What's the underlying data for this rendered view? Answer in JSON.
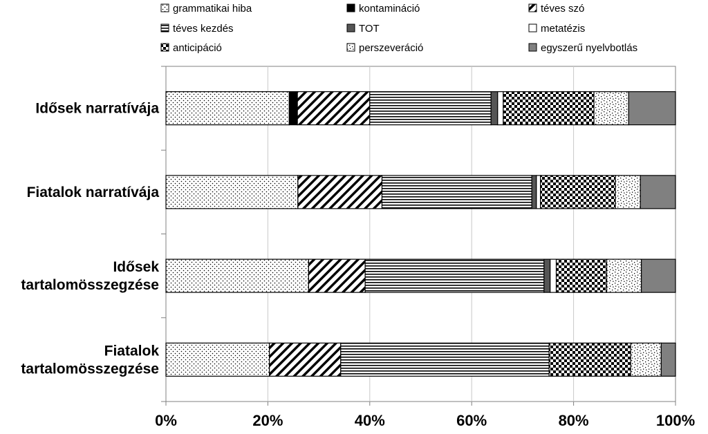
{
  "chart_data": {
    "type": "bar",
    "orientation": "horizontal",
    "stacked": true,
    "normalized": true,
    "title": "",
    "xlabel": "",
    "ylabel": "",
    "xlim": [
      0,
      100
    ],
    "xticks": [
      0,
      20,
      40,
      60,
      80,
      100
    ],
    "xtick_labels": [
      "0%",
      "20%",
      "40%",
      "60%",
      "80%",
      "100%"
    ],
    "grid": true,
    "legend_position": "top",
    "categories": [
      [
        "Idősek narratívája"
      ],
      [
        "Fiatalok narratívája"
      ],
      [
        "Idősek",
        "tartalomösszegzése"
      ],
      [
        "Fiatalok",
        "tartalomösszegzése"
      ]
    ],
    "series": [
      {
        "name": "grammatikai hiba",
        "values": [
          24.2,
          25.9,
          28.0,
          20.3
        ],
        "pattern": "dots",
        "color": "#ffffff"
      },
      {
        "name": "kontamináció",
        "values": [
          1.6,
          0,
          0,
          0
        ],
        "pattern": "solid",
        "color": "#000000"
      },
      {
        "name": "téves szó",
        "values": [
          14.2,
          16.5,
          11.1,
          14.0
        ],
        "pattern": "diagonal",
        "color": "#ffffff"
      },
      {
        "name": "téves kezdés",
        "values": [
          23.8,
          29.4,
          35.1,
          40.9
        ],
        "pattern": "horizontal",
        "color": "#ffffff"
      },
      {
        "name": "TOT",
        "values": [
          1.3,
          0.9,
          1.2,
          0
        ],
        "pattern": "solid",
        "color": "#555555"
      },
      {
        "name": "metatézis",
        "values": [
          1.1,
          0.8,
          1.2,
          0
        ],
        "pattern": "solid",
        "color": "#ffffff"
      },
      {
        "name": "anticipáció",
        "values": [
          17.8,
          14.7,
          9.9,
          16.0
        ],
        "pattern": "checker",
        "color": "#ffffff"
      },
      {
        "name": "perszeveráció",
        "values": [
          6.8,
          4.9,
          6.8,
          6.0
        ],
        "pattern": "sparse",
        "color": "#ffffff"
      },
      {
        "name": "egyszerű nyelvbotlás",
        "values": [
          9.2,
          6.9,
          6.7,
          2.8
        ],
        "pattern": "solid",
        "color": "#808080"
      }
    ]
  }
}
